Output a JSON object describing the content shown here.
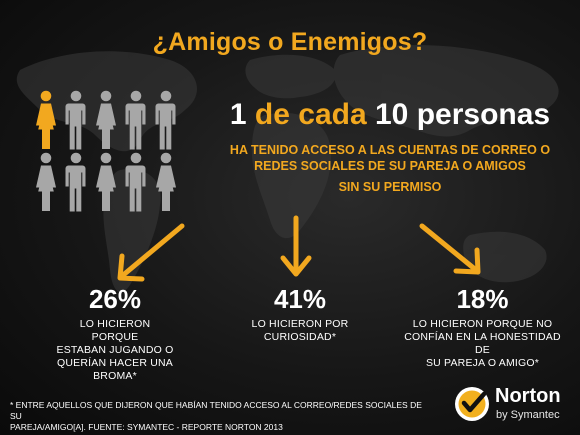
{
  "title": "¿Amigos o Enemigos?",
  "headline": {
    "part1": "1",
    "part2": "de cada",
    "part3": "10 personas"
  },
  "subheadline": {
    "line1": "HA TENIDO ACCESO A LAS CUENTAS DE CORREO O",
    "line2": "REDES SOCIALES DE SU PAREJA O AMIGOS",
    "line3": "SIN SU PERMISO"
  },
  "people": {
    "total": 10,
    "highlighted": 1,
    "highlight_color": "#f2a81f",
    "base_color": "#a7a7a7"
  },
  "stats": [
    {
      "value": "26%",
      "lines": [
        "LO HICIERON PORQUE",
        "ESTABAN JUGANDO O",
        "QUERÍAN HACER UNA",
        "BROMA*"
      ]
    },
    {
      "value": "41%",
      "lines": [
        "LO HICIERON POR",
        "CURIOSIDAD*"
      ]
    },
    {
      "value": "18%",
      "lines": [
        "LO HICIERON PORQUE NO",
        "CONFÍAN EN LA HONESTIDAD DE",
        "SU PAREJA O AMIGO*"
      ]
    }
  ],
  "footnote": {
    "line1": "* ENTRE AQUELLOS QUE DIJERON QUE HABÍAN TENIDO ACCESO AL CORREO/REDES SOCIALES DE SU",
    "line2": "PAREJA/AMIGO[A]. FUENTE: SYMANTEC - REPORTE NORTON 2013"
  },
  "brand": {
    "name": "Norton",
    "byline": "by Symantec",
    "badge_icon": "checkmark-icon"
  },
  "colors": {
    "accent": "#f2a81f",
    "background": "#141414",
    "text": "#ffffff"
  }
}
